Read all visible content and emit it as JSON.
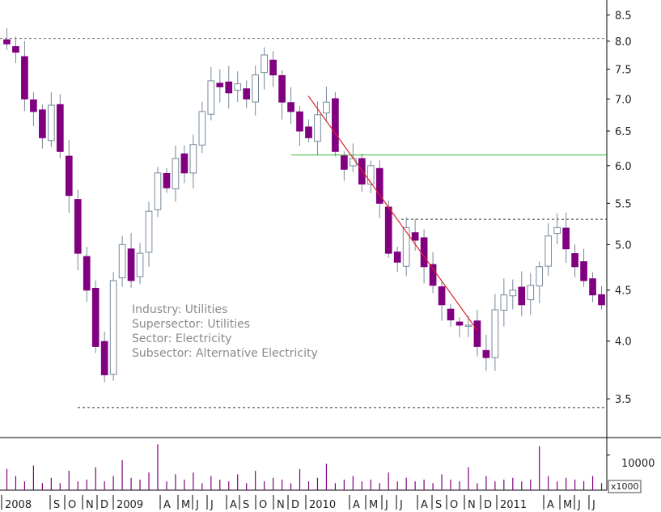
{
  "chart_data": {
    "type": "candlestick",
    "title": "",
    "y_scale": "log",
    "ylim": [
      3.2,
      8.8
    ],
    "y_ticks": [
      "8.5",
      "8.0",
      "7.5",
      "7.0",
      "6.5",
      "6.0",
      "5.5",
      "5.0",
      "4.5",
      "4.0",
      "3.5"
    ],
    "x_labels": [
      "2008",
      "S",
      "O",
      "N",
      "D",
      "2009",
      "A",
      "M",
      "J",
      "J",
      "A",
      "S",
      "O",
      "N",
      "D",
      "2010",
      "A",
      "M",
      "J",
      "J",
      "A",
      "S",
      "O",
      "N",
      "D",
      "2011",
      "A",
      "M",
      "J",
      "J"
    ],
    "annotation_lines": [
      "Industry: Utilities",
      "Supersector: Utilities",
      "Sector: Electricity",
      "Subsector: Alternative Electricity"
    ],
    "price_path": [
      7.95,
      7.8,
      7.0,
      6.8,
      6.4,
      6.9,
      6.2,
      5.6,
      4.9,
      4.5,
      3.95,
      3.7,
      4.6,
      5.0,
      4.6,
      4.9,
      5.4,
      5.9,
      5.7,
      6.1,
      5.9,
      6.3,
      6.8,
      7.3,
      7.2,
      7.1,
      7.25,
      7.0,
      7.4,
      7.75,
      7.4,
      6.95,
      6.8,
      6.5,
      6.4,
      6.75,
      6.95,
      6.2,
      5.95,
      6.1,
      5.75,
      6.0,
      5.5,
      4.9,
      4.8,
      5.2,
      5.05,
      4.75,
      4.55,
      4.35,
      4.2,
      4.15,
      4.15,
      3.95,
      3.85,
      4.3,
      4.45,
      4.5,
      4.35,
      4.55,
      4.75,
      5.1,
      5.2,
      4.95,
      4.75,
      4.6,
      4.45,
      4.35
    ],
    "highlight_levels": [
      {
        "value": 8.05,
        "color": "#777777",
        "style": "dashed"
      },
      {
        "value": 5.3,
        "color": "#333333",
        "style": "dashed"
      },
      {
        "value": 3.43,
        "color": "#333333",
        "style": "dashed"
      },
      {
        "value": 6.15,
        "color": "#33bb33",
        "style": "solid"
      }
    ],
    "trendline": {
      "from_value": 7.05,
      "to_value": 4.1,
      "color": "#dd2222"
    },
    "up_color": "#ffffff",
    "down_color": "#800080",
    "up_outline": "#778899",
    "volume": {
      "tick_label": "10000",
      "unit_label": "x1000",
      "reference": 10000,
      "max": 14000,
      "values": [
        6000,
        4000,
        2500,
        7000,
        2000,
        3500,
        2000,
        5500,
        2500,
        3000,
        6500,
        2500,
        4000,
        8500,
        3500,
        3000,
        5000,
        13000,
        2500,
        4500,
        3000,
        5000,
        2000,
        4000,
        3000,
        2500,
        4500,
        2000,
        5500,
        2500,
        3500,
        3000,
        2000,
        6000,
        2500,
        3500,
        7500,
        2000,
        3000,
        4000,
        2500,
        3000,
        2000,
        5000,
        2500,
        3500,
        2500,
        3000,
        2000,
        4500,
        3000,
        2500,
        6500,
        2000,
        4000,
        2500,
        3000,
        3500,
        2500,
        3000,
        12500,
        4000,
        2500,
        3500,
        3000,
        2500,
        4000,
        2000
      ]
    }
  }
}
